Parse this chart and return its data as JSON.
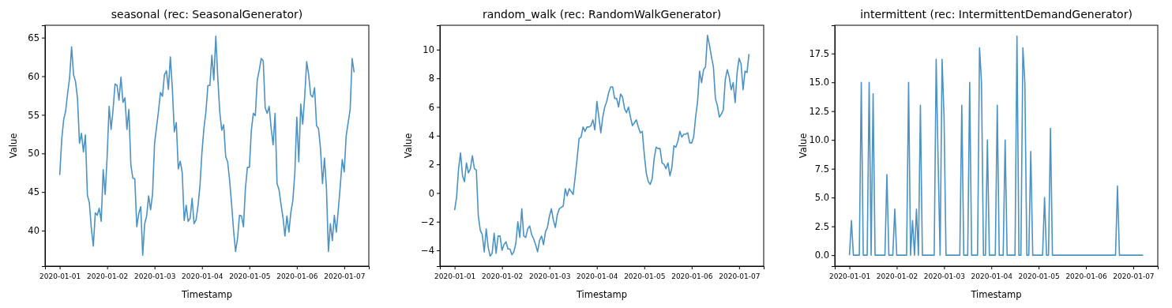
{
  "chart_data": [
    {
      "type": "line",
      "title": "seasonal (rec: SeasonalGenerator)",
      "xlabel": "Timestamp",
      "ylabel": "Value",
      "x": [
        "2020-01-01T00:00",
        "2020-01-01T01:00",
        "2020-01-01T02:00",
        "2020-01-01T03:00",
        "2020-01-01T04:00",
        "2020-01-01T05:00",
        "2020-01-01T06:00",
        "2020-01-01T07:00",
        "2020-01-01T08:00",
        "2020-01-01T09:00",
        "2020-01-01T10:00",
        "2020-01-01T11:00",
        "2020-01-01T12:00",
        "2020-01-01T13:00",
        "2020-01-01T14:00",
        "2020-01-01T15:00",
        "2020-01-01T16:00",
        "2020-01-01T17:00",
        "2020-01-01T18:00",
        "2020-01-01T19:00",
        "2020-01-01T20:00",
        "2020-01-01T21:00",
        "2020-01-01T22:00",
        "2020-01-01T23:00",
        "2020-01-02T00:00",
        "2020-01-02T01:00",
        "2020-01-02T02:00",
        "2020-01-02T03:00",
        "2020-01-02T04:00",
        "2020-01-02T05:00",
        "2020-01-02T06:00",
        "2020-01-02T07:00",
        "2020-01-02T08:00",
        "2020-01-02T09:00",
        "2020-01-02T10:00",
        "2020-01-02T11:00",
        "2020-01-02T12:00",
        "2020-01-02T13:00",
        "2020-01-02T14:00",
        "2020-01-02T15:00",
        "2020-01-02T16:00",
        "2020-01-02T17:00",
        "2020-01-02T18:00",
        "2020-01-02T19:00",
        "2020-01-02T20:00",
        "2020-01-02T21:00",
        "2020-01-02T22:00",
        "2020-01-02T23:00",
        "2020-01-03T00:00",
        "2020-01-03T01:00",
        "2020-01-03T02:00",
        "2020-01-03T03:00",
        "2020-01-03T04:00",
        "2020-01-03T05:00",
        "2020-01-03T06:00",
        "2020-01-03T07:00",
        "2020-01-03T08:00",
        "2020-01-03T09:00",
        "2020-01-03T10:00",
        "2020-01-03T11:00",
        "2020-01-03T12:00",
        "2020-01-03T13:00",
        "2020-01-03T14:00",
        "2020-01-03T15:00",
        "2020-01-03T16:00",
        "2020-01-03T17:00",
        "2020-01-03T18:00",
        "2020-01-03T19:00",
        "2020-01-03T20:00",
        "2020-01-03T21:00",
        "2020-01-03T22:00",
        "2020-01-03T23:00",
        "2020-01-04T00:00",
        "2020-01-04T01:00",
        "2020-01-04T02:00",
        "2020-01-04T03:00",
        "2020-01-04T04:00",
        "2020-01-04T05:00",
        "2020-01-04T06:00",
        "2020-01-04T07:00",
        "2020-01-04T08:00",
        "2020-01-04T09:00",
        "2020-01-04T10:00",
        "2020-01-04T11:00",
        "2020-01-04T12:00",
        "2020-01-04T13:00",
        "2020-01-04T14:00",
        "2020-01-04T15:00",
        "2020-01-04T16:00",
        "2020-01-04T17:00",
        "2020-01-04T18:00",
        "2020-01-04T19:00",
        "2020-01-04T20:00",
        "2020-01-04T21:00",
        "2020-01-04T22:00",
        "2020-01-04T23:00",
        "2020-01-05T00:00",
        "2020-01-05T01:00",
        "2020-01-05T02:00",
        "2020-01-05T03:00",
        "2020-01-05T04:00",
        "2020-01-05T05:00",
        "2020-01-05T06:00",
        "2020-01-05T07:00",
        "2020-01-05T08:00",
        "2020-01-05T09:00",
        "2020-01-05T10:00",
        "2020-01-05T11:00",
        "2020-01-05T12:00",
        "2020-01-05T13:00",
        "2020-01-05T14:00",
        "2020-01-05T15:00",
        "2020-01-05T16:00",
        "2020-01-05T17:00",
        "2020-01-05T18:00",
        "2020-01-05T19:00",
        "2020-01-05T20:00",
        "2020-01-05T21:00",
        "2020-01-05T22:00",
        "2020-01-05T23:00",
        "2020-01-06T00:00",
        "2020-01-06T01:00",
        "2020-01-06T02:00",
        "2020-01-06T03:00",
        "2020-01-06T04:00",
        "2020-01-06T05:00",
        "2020-01-06T06:00",
        "2020-01-06T07:00",
        "2020-01-06T08:00",
        "2020-01-06T09:00",
        "2020-01-06T10:00",
        "2020-01-06T11:00",
        "2020-01-06T12:00",
        "2020-01-06T13:00",
        "2020-01-06T14:00",
        "2020-01-06T15:00",
        "2020-01-06T16:00",
        "2020-01-06T17:00",
        "2020-01-06T18:00",
        "2020-01-06T19:00",
        "2020-01-06T20:00",
        "2020-01-06T21:00",
        "2020-01-06T22:00",
        "2020-01-06T23:00",
        "2020-01-07T00:00",
        "2020-01-07T01:00",
        "2020-01-07T02:00",
        "2020-01-07T03:00",
        "2020-01-07T04:00",
        "2020-01-07T05:00"
      ],
      "series": [
        {
          "color": "#4c92c3",
          "values": [
            47.2,
            51.8,
            54.4,
            55.5,
            57.8,
            59.8,
            63.8,
            60.2,
            59.3,
            57.1,
            51.3,
            52.6,
            50.2,
            52.4,
            44.6,
            43.6,
            40.3,
            38.0,
            42.3,
            42.0,
            42.9,
            41.2,
            47.9,
            44.7,
            49.6,
            56.1,
            53.1,
            55.7,
            59.0,
            58.8,
            56.9,
            59.9,
            56.6,
            57.2,
            53.1,
            55.7,
            48.5,
            46.8,
            46.7,
            40.5,
            42.2,
            43.1,
            36.8,
            40.9,
            41.9,
            44.5,
            42.7,
            44.8,
            51.3,
            53.4,
            55.5,
            57.9,
            57.4,
            60.2,
            60.7,
            58.3,
            62.5,
            58.4,
            52.8,
            54.0,
            48.0,
            49.0,
            47.5,
            41.3,
            43.3,
            41.2,
            41.6,
            44.2,
            40.9,
            41.4,
            43.2,
            45.9,
            50.2,
            53.3,
            55.4,
            58.8,
            58.8,
            62.7,
            59.5,
            65.2,
            59.8,
            55.4,
            53.0,
            53.7,
            49.6,
            48.9,
            46.5,
            43.4,
            40.0,
            37.3,
            39.0,
            42.0,
            41.9,
            40.5,
            45.5,
            48.2,
            48.2,
            53.0,
            55.2,
            54.9,
            59.5,
            60.8,
            62.3,
            62.0,
            55.9,
            55.2,
            56.1,
            53.3,
            51.1,
            55.2,
            46.1,
            45.3,
            43.4,
            41.7,
            39.3,
            41.9,
            39.8,
            42.4,
            43.9,
            47.5,
            54.7,
            48.9,
            56.4,
            53.8,
            57.4,
            61.9,
            60.2,
            57.6,
            57.3,
            58.5,
            53.6,
            53.2,
            50.6,
            46.1,
            49.4,
            45.5,
            37.3,
            40.9,
            38.7,
            42.0,
            39.8,
            42.7,
            45.8,
            49.2,
            47.6,
            52.3,
            54.0,
            55.7,
            62.3,
            60.5
          ]
        }
      ],
      "xlim": [
        "2019-12-31T16:33",
        "2020-01-07T12:27"
      ],
      "xticks": [
        "2020-01-01",
        "2020-01-02",
        "2020-01-03",
        "2020-01-04",
        "2020-01-05",
        "2020-01-06",
        "2020-01-07"
      ],
      "ylim": [
        35.4,
        66.6
      ],
      "yticks": [
        40,
        45,
        50,
        55,
        60,
        65
      ]
    },
    {
      "type": "line",
      "title": "random_walk (rec: RandomWalkGenerator)",
      "xlabel": "Timestamp",
      "ylabel": "Value",
      "x": [
        "2020-01-01T00:00",
        "2020-01-01T01:00",
        "2020-01-01T02:00",
        "2020-01-01T03:00",
        "2020-01-01T04:00",
        "2020-01-01T05:00",
        "2020-01-01T06:00",
        "2020-01-01T07:00",
        "2020-01-01T08:00",
        "2020-01-01T09:00",
        "2020-01-01T10:00",
        "2020-01-01T11:00",
        "2020-01-01T12:00",
        "2020-01-01T13:00",
        "2020-01-01T14:00",
        "2020-01-01T15:00",
        "2020-01-01T16:00",
        "2020-01-01T17:00",
        "2020-01-01T18:00",
        "2020-01-01T19:00",
        "2020-01-01T20:00",
        "2020-01-01T21:00",
        "2020-01-01T22:00",
        "2020-01-01T23:00",
        "2020-01-02T00:00",
        "2020-01-02T01:00",
        "2020-01-02T02:00",
        "2020-01-02T03:00",
        "2020-01-02T04:00",
        "2020-01-02T05:00",
        "2020-01-02T06:00",
        "2020-01-02T07:00",
        "2020-01-02T08:00",
        "2020-01-02T09:00",
        "2020-01-02T10:00",
        "2020-01-02T11:00",
        "2020-01-02T12:00",
        "2020-01-02T13:00",
        "2020-01-02T14:00",
        "2020-01-02T15:00",
        "2020-01-02T16:00",
        "2020-01-02T17:00",
        "2020-01-02T18:00",
        "2020-01-02T19:00",
        "2020-01-02T20:00",
        "2020-01-02T21:00",
        "2020-01-02T22:00",
        "2020-01-02T23:00",
        "2020-01-03T00:00",
        "2020-01-03T01:00",
        "2020-01-03T02:00",
        "2020-01-03T03:00",
        "2020-01-03T04:00",
        "2020-01-03T05:00",
        "2020-01-03T06:00",
        "2020-01-03T07:00",
        "2020-01-03T08:00",
        "2020-01-03T09:00",
        "2020-01-03T10:00",
        "2020-01-03T11:00",
        "2020-01-03T12:00",
        "2020-01-03T13:00",
        "2020-01-03T14:00",
        "2020-01-03T15:00",
        "2020-01-03T16:00",
        "2020-01-03T17:00",
        "2020-01-03T18:00",
        "2020-01-03T19:00",
        "2020-01-03T20:00",
        "2020-01-03T21:00",
        "2020-01-03T22:00",
        "2020-01-03T23:00",
        "2020-01-04T00:00",
        "2020-01-04T01:00",
        "2020-01-04T02:00",
        "2020-01-04T03:00",
        "2020-01-04T04:00",
        "2020-01-04T05:00",
        "2020-01-04T06:00",
        "2020-01-04T07:00",
        "2020-01-04T08:00",
        "2020-01-04T09:00",
        "2020-01-04T10:00",
        "2020-01-04T11:00",
        "2020-01-04T12:00",
        "2020-01-04T13:00",
        "2020-01-04T14:00",
        "2020-01-04T15:00",
        "2020-01-04T16:00",
        "2020-01-04T17:00",
        "2020-01-04T18:00",
        "2020-01-04T19:00",
        "2020-01-04T20:00",
        "2020-01-04T21:00",
        "2020-01-04T22:00",
        "2020-01-04T23:00",
        "2020-01-05T00:00",
        "2020-01-05T01:00",
        "2020-01-05T02:00",
        "2020-01-05T03:00",
        "2020-01-05T04:00",
        "2020-01-05T05:00",
        "2020-01-05T06:00",
        "2020-01-05T07:00",
        "2020-01-05T08:00",
        "2020-01-05T09:00",
        "2020-01-05T10:00",
        "2020-01-05T11:00",
        "2020-01-05T12:00",
        "2020-01-05T13:00",
        "2020-01-05T14:00",
        "2020-01-05T15:00",
        "2020-01-05T16:00",
        "2020-01-05T17:00",
        "2020-01-05T18:00",
        "2020-01-05T19:00",
        "2020-01-05T20:00",
        "2020-01-05T21:00",
        "2020-01-05T22:00",
        "2020-01-05T23:00",
        "2020-01-06T00:00",
        "2020-01-06T01:00",
        "2020-01-06T02:00",
        "2020-01-06T03:00",
        "2020-01-06T04:00",
        "2020-01-06T05:00",
        "2020-01-06T06:00",
        "2020-01-06T07:00",
        "2020-01-06T08:00",
        "2020-01-06T09:00",
        "2020-01-06T10:00",
        "2020-01-06T11:00",
        "2020-01-06T12:00",
        "2020-01-06T13:00",
        "2020-01-06T14:00",
        "2020-01-06T15:00",
        "2020-01-06T16:00",
        "2020-01-06T17:00",
        "2020-01-06T18:00",
        "2020-01-06T19:00",
        "2020-01-06T20:00",
        "2020-01-06T21:00",
        "2020-01-06T22:00",
        "2020-01-06T23:00",
        "2020-01-07T00:00",
        "2020-01-07T01:00",
        "2020-01-07T02:00",
        "2020-01-07T03:00",
        "2020-01-07T04:00",
        "2020-01-07T05:00"
      ],
      "series": [
        {
          "color": "#4c92c3",
          "values": [
            -1.2,
            -0.3,
            1.7,
            2.8,
            1.2,
            0.8,
            2.1,
            1.4,
            1.7,
            2.6,
            1.7,
            1.6,
            -1.6,
            -2.6,
            -2.9,
            -4.1,
            -2.5,
            -3.8,
            -4.4,
            -4.2,
            -2.8,
            -4.2,
            -3.0,
            -3.0,
            -4.0,
            -3.6,
            -3.4,
            -3.9,
            -3.9,
            -4.3,
            -4.1,
            -3.5,
            -2.0,
            -3.1,
            -1.1,
            -3.0,
            -3.1,
            -2.5,
            -2.3,
            -2.9,
            -3.2,
            -3.6,
            -4.1,
            -3.3,
            -3.0,
            -3.6,
            -2.7,
            -2.4,
            -1.6,
            -1.1,
            -1.9,
            -2.4,
            -1.5,
            -1.1,
            -1.0,
            -0.9,
            0.3,
            -0.2,
            0.3,
            0.1,
            -0.1,
            1.1,
            2.4,
            3.8,
            3.9,
            4.6,
            4.3,
            4.6,
            4.6,
            4.7,
            5.1,
            4.4,
            6.4,
            5.3,
            4.2,
            5.3,
            6.0,
            6.4,
            7.0,
            7.4,
            7.4,
            6.6,
            6.6,
            6.0,
            6.9,
            6.7,
            5.9,
            5.6,
            6.0,
            5.3,
            4.7,
            4.9,
            5.1,
            4.6,
            4.2,
            4.3,
            2.7,
            1.4,
            0.8,
            0.6,
            1.0,
            2.4,
            3.2,
            3.1,
            3.1,
            2.1,
            2.0,
            1.7,
            2.1,
            1.2,
            1.8,
            3.3,
            3.2,
            3.6,
            4.3,
            3.9,
            4.1,
            4.1,
            4.2,
            3.5,
            3.5,
            3.9,
            5.3,
            6.4,
            8.5,
            7.7,
            8.6,
            8.8,
            11.0,
            10.3,
            9.5,
            8.8,
            6.6,
            6.1,
            5.3,
            5.5,
            5.8,
            7.9,
            8.6,
            8.1,
            7.2,
            7.7,
            6.3,
            8.4,
            9.4,
            9.0,
            7.2,
            8.5,
            8.4,
            9.7
          ]
        }
      ],
      "xlim": [
        "2019-12-31T16:33",
        "2020-01-07T12:27"
      ],
      "xticks": [
        "2020-01-01",
        "2020-01-02",
        "2020-01-03",
        "2020-01-04",
        "2020-01-05",
        "2020-01-06",
        "2020-01-07"
      ],
      "ylim": [
        -5.1,
        11.7
      ],
      "yticks": [
        {
          "value": -4,
          "label": "−4"
        },
        {
          "value": -2,
          "label": "−2"
        },
        0,
        2,
        4,
        6,
        8,
        10
      ]
    },
    {
      "type": "line",
      "title": "intermittent (rec: IntermittentDemandGenerator)",
      "xlabel": "Timestamp",
      "ylabel": "Value",
      "x": [
        "2020-01-01T00:00",
        "2020-01-01T01:00",
        "2020-01-01T02:00",
        "2020-01-01T03:00",
        "2020-01-01T04:00",
        "2020-01-01T05:00",
        "2020-01-01T06:00",
        "2020-01-01T07:00",
        "2020-01-01T08:00",
        "2020-01-01T09:00",
        "2020-01-01T10:00",
        "2020-01-01T11:00",
        "2020-01-01T12:00",
        "2020-01-01T13:00",
        "2020-01-01T14:00",
        "2020-01-01T15:00",
        "2020-01-01T16:00",
        "2020-01-01T17:00",
        "2020-01-01T18:00",
        "2020-01-01T19:00",
        "2020-01-01T20:00",
        "2020-01-01T21:00",
        "2020-01-01T22:00",
        "2020-01-01T23:00",
        "2020-01-02T00:00",
        "2020-01-02T01:00",
        "2020-01-02T02:00",
        "2020-01-02T03:00",
        "2020-01-02T04:00",
        "2020-01-02T05:00",
        "2020-01-02T06:00",
        "2020-01-02T07:00",
        "2020-01-02T08:00",
        "2020-01-02T09:00",
        "2020-01-02T10:00",
        "2020-01-02T11:00",
        "2020-01-02T12:00",
        "2020-01-02T13:00",
        "2020-01-02T14:00",
        "2020-01-02T15:00",
        "2020-01-02T16:00",
        "2020-01-02T17:00",
        "2020-01-02T18:00",
        "2020-01-02T19:00",
        "2020-01-02T20:00",
        "2020-01-02T21:00",
        "2020-01-02T22:00",
        "2020-01-02T23:00",
        "2020-01-03T00:00",
        "2020-01-03T01:00",
        "2020-01-03T02:00",
        "2020-01-03T03:00",
        "2020-01-03T04:00",
        "2020-01-03T05:00",
        "2020-01-03T06:00",
        "2020-01-03T07:00",
        "2020-01-03T08:00",
        "2020-01-03T09:00",
        "2020-01-03T10:00",
        "2020-01-03T11:00",
        "2020-01-03T12:00",
        "2020-01-03T13:00",
        "2020-01-03T14:00",
        "2020-01-03T15:00",
        "2020-01-03T16:00",
        "2020-01-03T17:00",
        "2020-01-03T18:00",
        "2020-01-03T19:00",
        "2020-01-03T20:00",
        "2020-01-03T21:00",
        "2020-01-03T22:00",
        "2020-01-03T23:00",
        "2020-01-04T00:00",
        "2020-01-04T01:00",
        "2020-01-04T02:00",
        "2020-01-04T03:00",
        "2020-01-04T04:00",
        "2020-01-04T05:00",
        "2020-01-04T06:00",
        "2020-01-04T07:00",
        "2020-01-04T08:00",
        "2020-01-04T09:00",
        "2020-01-04T10:00",
        "2020-01-04T11:00",
        "2020-01-04T12:00",
        "2020-01-04T13:00",
        "2020-01-04T14:00",
        "2020-01-04T15:00",
        "2020-01-04T16:00",
        "2020-01-04T17:00",
        "2020-01-04T18:00",
        "2020-01-04T19:00",
        "2020-01-04T20:00",
        "2020-01-04T21:00",
        "2020-01-04T22:00",
        "2020-01-04T23:00",
        "2020-01-05T00:00",
        "2020-01-05T01:00",
        "2020-01-05T02:00",
        "2020-01-05T03:00",
        "2020-01-05T04:00",
        "2020-01-05T05:00",
        "2020-01-05T06:00",
        "2020-01-05T07:00",
        "2020-01-05T08:00",
        "2020-01-05T09:00",
        "2020-01-05T10:00",
        "2020-01-05T11:00",
        "2020-01-05T12:00",
        "2020-01-05T13:00",
        "2020-01-05T14:00",
        "2020-01-05T15:00",
        "2020-01-05T16:00",
        "2020-01-05T17:00",
        "2020-01-05T18:00",
        "2020-01-05T19:00",
        "2020-01-05T20:00",
        "2020-01-05T21:00",
        "2020-01-05T22:00",
        "2020-01-05T23:00",
        "2020-01-06T00:00",
        "2020-01-06T01:00",
        "2020-01-06T02:00",
        "2020-01-06T03:00",
        "2020-01-06T04:00",
        "2020-01-06T05:00",
        "2020-01-06T06:00",
        "2020-01-06T07:00",
        "2020-01-06T08:00",
        "2020-01-06T09:00",
        "2020-01-06T10:00",
        "2020-01-06T11:00",
        "2020-01-06T12:00",
        "2020-01-06T13:00",
        "2020-01-06T14:00",
        "2020-01-06T15:00",
        "2020-01-06T16:00",
        "2020-01-06T17:00",
        "2020-01-06T18:00",
        "2020-01-06T19:00",
        "2020-01-06T20:00",
        "2020-01-06T21:00",
        "2020-01-06T22:00",
        "2020-01-06T23:00",
        "2020-01-07T00:00",
        "2020-01-07T01:00",
        "2020-01-07T02:00",
        "2020-01-07T03:00",
        "2020-01-07T04:00",
        "2020-01-07T05:00"
      ],
      "series": [
        {
          "color": "#4c92c3",
          "values": [
            0,
            3,
            0,
            0,
            0,
            0,
            15,
            0,
            0,
            0,
            15,
            0,
            14,
            0,
            0,
            0,
            0,
            0,
            0,
            7,
            0,
            0,
            0,
            4,
            0,
            0,
            0,
            0,
            0,
            0,
            15,
            0,
            3,
            0,
            4,
            0,
            13,
            0,
            0,
            0,
            0,
            0,
            0,
            0,
            17,
            8,
            0,
            17,
            12,
            0,
            0,
            0,
            0,
            0,
            0,
            0,
            0,
            13,
            0,
            0,
            0,
            15,
            0,
            0,
            0,
            0,
            18,
            15,
            0,
            0,
            10,
            0,
            0,
            0,
            0,
            13,
            0,
            0,
            0,
            10,
            0,
            0,
            0,
            0,
            0,
            19,
            0,
            0,
            18,
            15,
            0,
            0,
            9,
            0,
            0,
            0,
            0,
            0,
            0,
            5,
            0,
            0,
            11,
            0,
            0,
            0,
            0,
            0,
            0,
            0,
            0,
            0,
            0,
            0,
            0,
            0,
            0,
            0,
            0,
            0,
            0,
            0,
            0,
            0,
            0,
            0,
            0,
            0,
            0,
            0,
            0,
            0,
            0,
            0,
            0,
            0,
            6,
            0,
            0,
            0,
            0,
            0,
            0,
            0,
            0,
            0,
            0,
            0,
            0,
            0
          ]
        }
      ],
      "xlim": [
        "2019-12-31T16:33",
        "2020-01-07T12:27"
      ],
      "xticks": [
        "2020-01-01",
        "2020-01-02",
        "2020-01-03",
        "2020-01-04",
        "2020-01-05",
        "2020-01-06",
        "2020-01-07"
      ],
      "ylim": [
        -0.95,
        19.95
      ],
      "yticks": [
        {
          "value": 0,
          "label": "0.0"
        },
        2.5,
        {
          "value": 5,
          "label": "5.0"
        },
        7.5,
        {
          "value": 10,
          "label": "10.0"
        },
        12.5,
        {
          "value": 15,
          "label": "15.0"
        },
        17.5
      ]
    }
  ]
}
